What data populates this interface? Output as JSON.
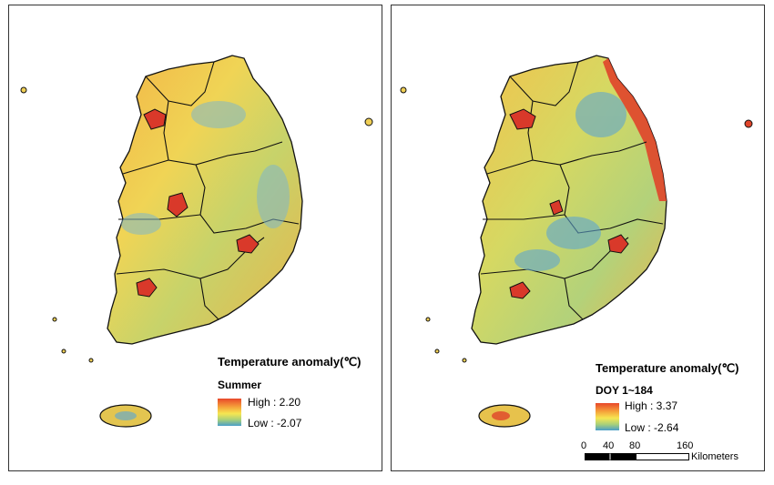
{
  "left_panel": {
    "legend_title": "Temperature anomaly(℃)",
    "legend_subtitle": "Summer",
    "high_label": "High : 2.20",
    "low_label": "Low : -2.07"
  },
  "right_panel": {
    "legend_title": "Temperature anomaly(℃)",
    "legend_subtitle": "DOY 1~184",
    "high_label": "High : 3.37",
    "low_label": "Low : -2.64",
    "scale_bar": {
      "ticks": [
        "0",
        "40",
        "80",
        "160"
      ],
      "unit": "Kilometers"
    }
  },
  "colors": {
    "high": "#e8472a",
    "mid_high": "#f5a03a",
    "mid": "#f6e651",
    "mid_low": "#a8d07a",
    "low": "#4a9ec9",
    "boundary": "#111111"
  }
}
